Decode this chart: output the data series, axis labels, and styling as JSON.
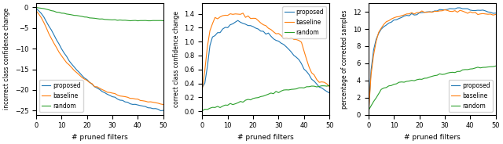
{
  "colors": {
    "proposed": "#1f77b4",
    "baseline": "#ff7f0e",
    "random": "#2ca02c"
  },
  "plot1": {
    "ylabel": "incorrect class confidence change",
    "xlabel": "# pruned filters",
    "ylim": [
      -26,
      1
    ],
    "xlim": [
      0,
      50
    ],
    "yticks": [
      0,
      -5,
      -10,
      -15,
      -20,
      -25
    ],
    "xticks": [
      0,
      10,
      20,
      30,
      40,
      50
    ],
    "proposed_x": [
      0,
      1,
      2,
      3,
      4,
      5,
      6,
      7,
      8,
      9,
      10,
      11,
      12,
      13,
      14,
      15,
      16,
      17,
      18,
      19,
      20,
      21,
      22,
      23,
      24,
      25,
      26,
      27,
      28,
      29,
      30,
      31,
      32,
      33,
      34,
      35,
      36,
      37,
      38,
      39,
      40,
      41,
      42,
      43,
      44,
      45,
      46,
      47,
      48,
      49,
      50
    ],
    "proposed_y": [
      -0.3,
      -0.8,
      -1.5,
      -2.4,
      -3.4,
      -4.5,
      -5.6,
      -6.7,
      -7.8,
      -8.9,
      -10.0,
      -11.0,
      -11.9,
      -12.8,
      -13.6,
      -14.4,
      -15.1,
      -15.8,
      -16.4,
      -17.0,
      -17.6,
      -18.1,
      -18.6,
      -19.1,
      -19.5,
      -19.9,
      -20.3,
      -20.7,
      -21.0,
      -21.3,
      -21.6,
      -21.9,
      -22.2,
      -22.4,
      -22.6,
      -22.8,
      -23.0,
      -23.2,
      -23.4,
      -23.5,
      -23.7,
      -23.8,
      -23.9,
      -24.0,
      -24.2,
      -24.3,
      -24.5,
      -24.6,
      -24.7,
      -24.9,
      -25.0
    ],
    "baseline_x": [
      0,
      1,
      2,
      3,
      4,
      5,
      6,
      7,
      8,
      9,
      10,
      11,
      12,
      13,
      14,
      15,
      16,
      17,
      18,
      19,
      20,
      21,
      22,
      23,
      24,
      25,
      26,
      27,
      28,
      29,
      30,
      31,
      32,
      33,
      34,
      35,
      36,
      37,
      38,
      39,
      40,
      41,
      42,
      43,
      44,
      45,
      46,
      47,
      48,
      49,
      50
    ],
    "baseline_y": [
      -0.8,
      -1.5,
      -2.5,
      -3.7,
      -5.0,
      -6.3,
      -7.5,
      -8.7,
      -9.8,
      -10.8,
      -11.7,
      -12.5,
      -13.3,
      -14.0,
      -14.7,
      -15.3,
      -15.9,
      -16.4,
      -16.9,
      -17.4,
      -17.8,
      -18.2,
      -18.6,
      -19.0,
      -19.3,
      -19.6,
      -19.9,
      -20.2,
      -20.4,
      -20.6,
      -20.8,
      -21.0,
      -21.2,
      -21.4,
      -21.5,
      -21.7,
      -21.8,
      -22.0,
      -22.1,
      -22.2,
      -22.3,
      -22.5,
      -22.6,
      -22.7,
      -22.8,
      -22.9,
      -23.0,
      -23.1,
      -23.2,
      -23.3,
      -23.5
    ],
    "random_x": [
      0,
      1,
      2,
      3,
      4,
      5,
      6,
      7,
      8,
      9,
      10,
      11,
      12,
      13,
      14,
      15,
      16,
      17,
      18,
      19,
      20,
      21,
      22,
      23,
      24,
      25,
      26,
      27,
      28,
      29,
      30,
      31,
      32,
      33,
      34,
      35,
      36,
      37,
      38,
      39,
      40,
      41,
      42,
      43,
      44,
      45,
      46,
      47,
      48,
      49,
      50
    ],
    "random_y": [
      0.0,
      -0.1,
      -0.2,
      -0.3,
      -0.5,
      -0.6,
      -0.8,
      -0.9,
      -1.1,
      -1.2,
      -1.4,
      -1.5,
      -1.6,
      -1.7,
      -1.8,
      -1.9,
      -2.0,
      -2.1,
      -2.2,
      -2.3,
      -2.4,
      -2.5,
      -2.6,
      -2.7,
      -2.7,
      -2.8,
      -2.8,
      -2.9,
      -2.9,
      -3.0,
      -3.0,
      -3.0,
      -3.1,
      -3.1,
      -3.1,
      -3.1,
      -3.2,
      -3.2,
      -3.2,
      -3.2,
      -3.2,
      -3.2,
      -3.2,
      -3.2,
      -3.2,
      -3.2,
      -3.2,
      -3.2,
      -3.2,
      -3.2,
      -3.2
    ]
  },
  "plot2": {
    "ylabel": "correct class confidence change",
    "xlabel": "# pruned filters",
    "ylim": [
      -0.05,
      1.55
    ],
    "xlim": [
      0,
      50
    ],
    "yticks": [
      0.0,
      0.2,
      0.4,
      0.6,
      0.8,
      1.0,
      1.2,
      1.4
    ],
    "xticks": [
      0,
      10,
      20,
      30,
      40,
      50
    ],
    "proposed_x": [
      0,
      1,
      2,
      3,
      4,
      5,
      6,
      7,
      8,
      9,
      10,
      11,
      12,
      13,
      14,
      15,
      16,
      17,
      18,
      19,
      20,
      21,
      22,
      23,
      24,
      25,
      26,
      27,
      28,
      29,
      30,
      31,
      32,
      33,
      34,
      35,
      36,
      37,
      38,
      39,
      40,
      41,
      42,
      43,
      44,
      45,
      46,
      47,
      48,
      49,
      50
    ],
    "proposed_y": [
      0.34,
      0.4,
      0.65,
      0.92,
      1.06,
      1.1,
      1.12,
      1.14,
      1.17,
      1.19,
      1.21,
      1.23,
      1.25,
      1.27,
      1.28,
      1.28,
      1.27,
      1.26,
      1.24,
      1.23,
      1.21,
      1.19,
      1.17,
      1.15,
      1.13,
      1.11,
      1.09,
      1.07,
      1.05,
      1.03,
      1.0,
      0.98,
      0.95,
      0.92,
      0.89,
      0.86,
      0.82,
      0.78,
      0.73,
      0.68,
      0.62,
      0.57,
      0.52,
      0.47,
      0.43,
      0.39,
      0.36,
      0.33,
      0.3,
      0.27,
      0.25
    ],
    "baseline_x": [
      0,
      1,
      2,
      3,
      4,
      5,
      6,
      7,
      8,
      9,
      10,
      11,
      12,
      13,
      14,
      15,
      16,
      17,
      18,
      19,
      20,
      21,
      22,
      23,
      24,
      25,
      26,
      27,
      28,
      29,
      30,
      31,
      32,
      33,
      34,
      35,
      36,
      37,
      38,
      39,
      40,
      41,
      42,
      43,
      44,
      45,
      46,
      47,
      48,
      49,
      50
    ],
    "baseline_y": [
      0.33,
      0.6,
      0.92,
      1.15,
      1.25,
      1.3,
      1.32,
      1.34,
      1.36,
      1.37,
      1.38,
      1.39,
      1.4,
      1.4,
      1.4,
      1.39,
      1.38,
      1.37,
      1.36,
      1.35,
      1.34,
      1.32,
      1.3,
      1.28,
      1.25,
      1.22,
      1.2,
      1.17,
      1.14,
      1.12,
      1.09,
      1.08,
      1.07,
      1.06,
      1.05,
      1.05,
      1.04,
      1.03,
      1.01,
      0.98,
      0.88,
      0.75,
      0.64,
      0.56,
      0.5,
      0.45,
      0.43,
      0.41,
      0.39,
      0.38,
      0.37
    ],
    "random_x": [
      0,
      1,
      2,
      3,
      4,
      5,
      6,
      7,
      8,
      9,
      10,
      11,
      12,
      13,
      14,
      15,
      16,
      17,
      18,
      19,
      20,
      21,
      22,
      23,
      24,
      25,
      26,
      27,
      28,
      29,
      30,
      31,
      32,
      33,
      34,
      35,
      36,
      37,
      38,
      39,
      40,
      41,
      42,
      43,
      44,
      45,
      46,
      47,
      48,
      49,
      50
    ],
    "random_y": [
      0.01,
      0.02,
      0.03,
      0.04,
      0.05,
      0.06,
      0.07,
      0.075,
      0.08,
      0.09,
      0.095,
      0.1,
      0.105,
      0.11,
      0.12,
      0.13,
      0.14,
      0.15,
      0.17,
      0.17,
      0.18,
      0.19,
      0.2,
      0.21,
      0.22,
      0.23,
      0.24,
      0.25,
      0.26,
      0.27,
      0.28,
      0.29,
      0.3,
      0.305,
      0.31,
      0.315,
      0.32,
      0.325,
      0.33,
      0.335,
      0.34,
      0.345,
      0.35,
      0.355,
      0.355,
      0.355,
      0.36,
      0.36,
      0.36,
      0.36,
      0.37
    ]
  },
  "plot3": {
    "ylabel": "percentage of corrected samples",
    "xlabel": "# pruned filters",
    "ylim": [
      0,
      13
    ],
    "xlim": [
      0,
      50
    ],
    "yticks": [
      0,
      2,
      4,
      6,
      8,
      10,
      12
    ],
    "xticks": [
      0,
      10,
      20,
      30,
      40,
      50
    ],
    "proposed_x": [
      0,
      1,
      2,
      3,
      4,
      5,
      6,
      7,
      8,
      9,
      10,
      11,
      12,
      13,
      14,
      15,
      16,
      17,
      18,
      19,
      20,
      21,
      22,
      23,
      24,
      25,
      26,
      27,
      28,
      29,
      30,
      31,
      32,
      33,
      34,
      35,
      36,
      37,
      38,
      39,
      40,
      41,
      42,
      43,
      44,
      45,
      46,
      47,
      48,
      49,
      50
    ],
    "proposed_y": [
      0.0,
      5.2,
      7.5,
      8.8,
      9.5,
      9.9,
      10.2,
      10.4,
      10.6,
      10.8,
      11.0,
      11.1,
      11.2,
      11.35,
      11.5,
      11.55,
      11.6,
      11.65,
      11.7,
      11.75,
      11.8,
      11.85,
      11.9,
      11.95,
      12.0,
      12.05,
      12.1,
      12.15,
      12.2,
      12.25,
      12.3,
      12.3,
      12.35,
      12.4,
      12.4,
      12.45,
      12.45,
      12.4,
      12.4,
      12.35,
      12.3,
      12.25,
      12.2,
      12.2,
      12.15,
      12.1,
      12.05,
      12.0,
      11.95,
      11.9,
      11.85
    ],
    "baseline_x": [
      0,
      1,
      2,
      3,
      4,
      5,
      6,
      7,
      8,
      9,
      10,
      11,
      12,
      13,
      14,
      15,
      16,
      17,
      18,
      19,
      20,
      21,
      22,
      23,
      24,
      25,
      26,
      27,
      28,
      29,
      30,
      31,
      32,
      33,
      34,
      35,
      36,
      37,
      38,
      39,
      40,
      41,
      42,
      43,
      44,
      45,
      46,
      47,
      48,
      49,
      50
    ],
    "baseline_y": [
      0.0,
      4.6,
      7.0,
      8.5,
      9.5,
      10.1,
      10.5,
      10.8,
      11.0,
      11.15,
      11.3,
      11.4,
      11.5,
      11.55,
      11.6,
      11.65,
      11.7,
      11.75,
      11.8,
      11.85,
      11.9,
      11.95,
      12.0,
      12.0,
      12.05,
      12.1,
      12.1,
      12.1,
      12.1,
      12.1,
      12.1,
      12.1,
      12.1,
      12.1,
      12.1,
      12.05,
      12.05,
      12.0,
      12.0,
      11.95,
      11.9,
      11.9,
      11.85,
      11.8,
      11.8,
      11.8,
      11.75,
      11.75,
      11.7,
      11.7,
      11.7
    ],
    "random_x": [
      0,
      1,
      2,
      3,
      4,
      5,
      6,
      7,
      8,
      9,
      10,
      11,
      12,
      13,
      14,
      15,
      16,
      17,
      18,
      19,
      20,
      21,
      22,
      23,
      24,
      25,
      26,
      27,
      28,
      29,
      30,
      31,
      32,
      33,
      34,
      35,
      36,
      37,
      38,
      39,
      40,
      41,
      42,
      43,
      44,
      45,
      46,
      47,
      48,
      49,
      50
    ],
    "random_y": [
      0.5,
      1.0,
      1.5,
      2.0,
      2.5,
      2.9,
      3.1,
      3.2,
      3.3,
      3.4,
      3.5,
      3.6,
      3.7,
      3.75,
      3.8,
      3.85,
      3.9,
      3.95,
      4.0,
      4.05,
      4.1,
      4.2,
      4.3,
      4.35,
      4.4,
      4.45,
      4.5,
      4.6,
      4.7,
      4.75,
      4.8,
      4.85,
      4.9,
      4.95,
      5.0,
      5.05,
      5.1,
      5.2,
      5.25,
      5.3,
      5.35,
      5.4,
      5.45,
      5.5,
      5.5,
      5.5,
      5.55,
      5.6,
      5.6,
      5.65,
      5.7
    ]
  },
  "legend_labels": [
    "proposed",
    "baseline",
    "random"
  ],
  "figsize": [
    6.4,
    1.84
  ],
  "dpi": 100
}
